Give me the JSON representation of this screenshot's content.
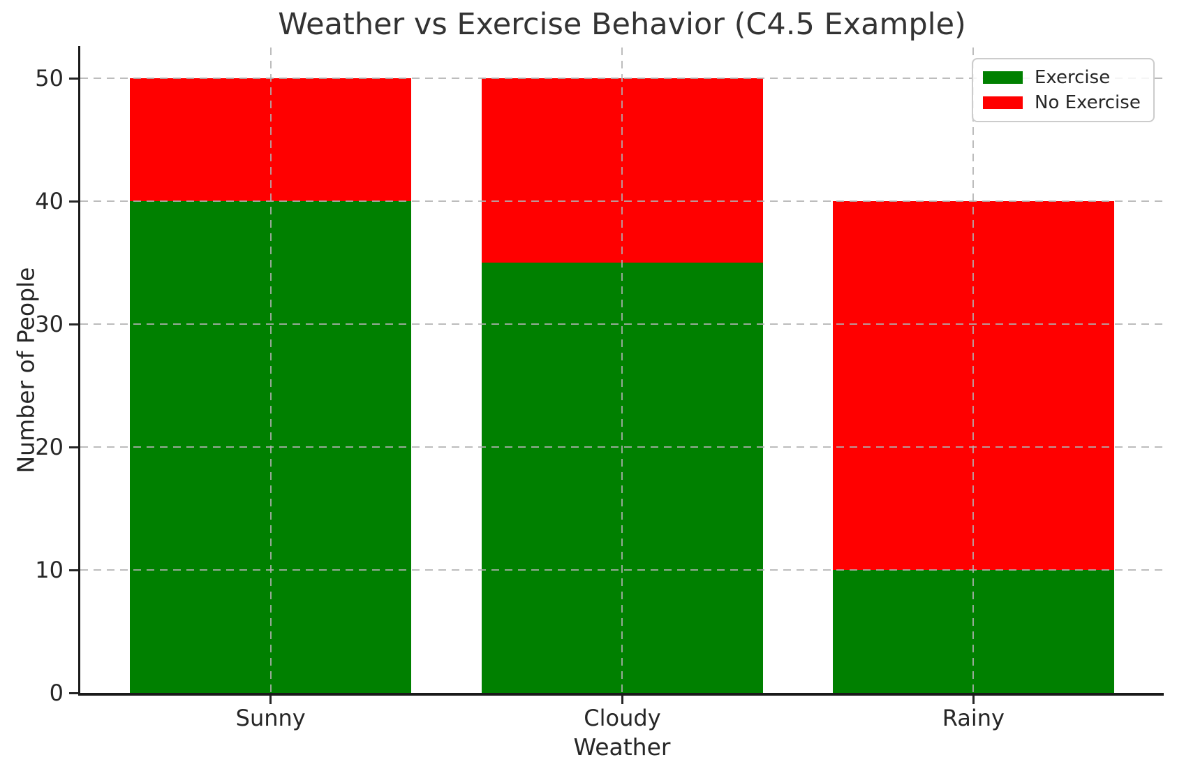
{
  "chart_data": {
    "type": "bar",
    "stacked": true,
    "title": "Weather vs Exercise Behavior (C4.5 Example)",
    "xlabel": "Weather",
    "ylabel": "Number of People",
    "categories": [
      "Sunny",
      "Cloudy",
      "Rainy"
    ],
    "series": [
      {
        "name": "Exercise",
        "color": "#008000",
        "values": [
          40,
          35,
          10
        ]
      },
      {
        "name": "No Exercise",
        "color": "#ff0000",
        "values": [
          10,
          15,
          30
        ]
      }
    ],
    "totals": [
      50,
      50,
      40
    ],
    "ylim": [
      0,
      52.5
    ],
    "yticks": [
      0,
      10,
      20,
      30,
      40,
      50
    ],
    "grid": true,
    "grid_style": "dashed",
    "legend_position": "upper right",
    "legend_items": [
      "Exercise",
      "No Exercise"
    ]
  }
}
